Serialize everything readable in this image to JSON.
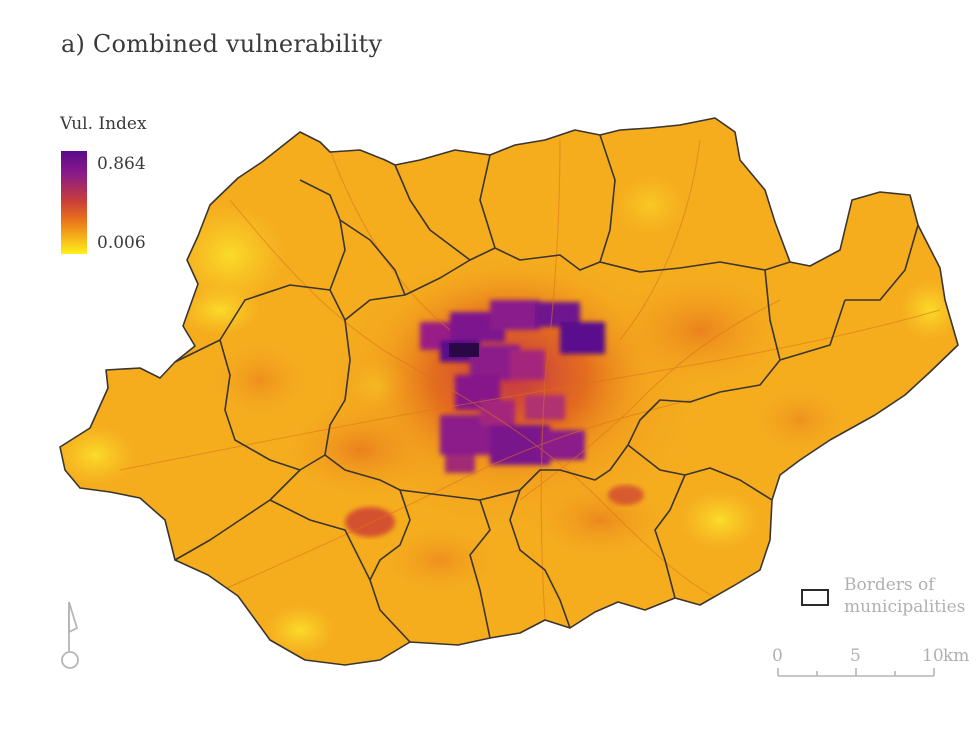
{
  "title": "a) Combined vulnerability",
  "legend": {
    "title": "Vul. Index",
    "max_label": "0.864",
    "min_label": "0.006",
    "colors": [
      "#fff21c",
      "#f7b21a",
      "#e8701c",
      "#c63d3a",
      "#8b1a8a",
      "#5a0a8c"
    ]
  },
  "boundary_legend": {
    "label_line1": "Borders of",
    "label_line2": "municipalities"
  },
  "scale_bar": {
    "tick_0": "0",
    "tick_5": "5",
    "tick_10": "10",
    "unit": "km"
  },
  "icons": {
    "north_arrow": "north-arrow-icon"
  }
}
